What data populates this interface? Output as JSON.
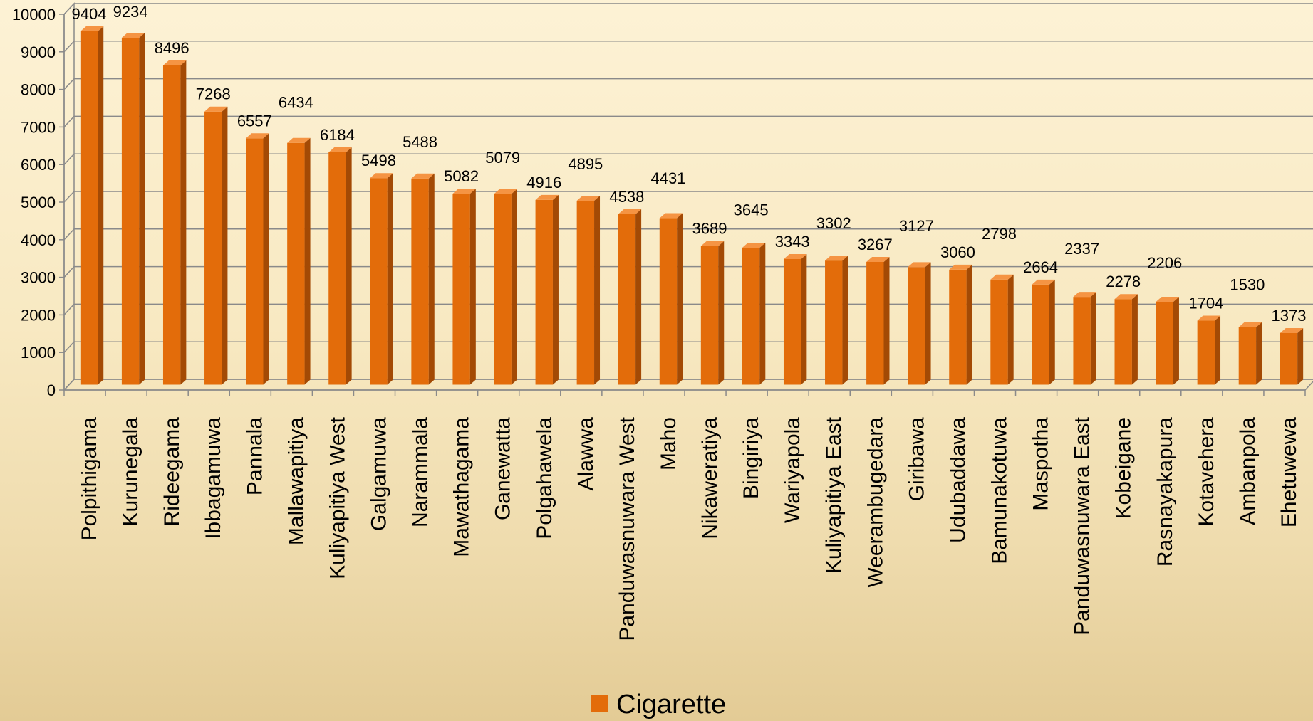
{
  "chart_data": {
    "type": "bar",
    "style": "3d-column",
    "categories": [
      "Polpithigama",
      "Kurunegala",
      "Rideegama",
      "Ibbagamuwa",
      "Pannala",
      "Mallawapitiya",
      "Kuliyapitiya West",
      "Galgamuwa",
      "Narammala",
      "Mawathagama",
      "Ganewatta",
      "Polgahawela",
      "Alawwa",
      "Panduwasnuwara West",
      "Maho",
      "Nikaweratiya",
      "Bingiriya",
      "Wariyapola",
      "Kuliyapitiya East",
      "Weerambugedara",
      "Giribawa",
      "Udubaddawa",
      "Bamunakotuwa",
      "Maspotha",
      "Panduwasnuwara East",
      "Kobeigane",
      "Rasnayakapura",
      "Kotavehera",
      "Ambanpola",
      "Ehetuwewa"
    ],
    "series": [
      {
        "name": "Cigarette",
        "color": "#e36c0a",
        "values": [
          9404,
          9234,
          8496,
          7268,
          6557,
          6434,
          6184,
          5498,
          5488,
          5082,
          5079,
          4916,
          4895,
          4538,
          4431,
          3689,
          3645,
          3343,
          3302,
          3267,
          3127,
          3060,
          2798,
          2664,
          2337,
          2278,
          2206,
          1704,
          1530,
          1373
        ]
      }
    ],
    "ylim": [
      0,
      10000
    ],
    "yticks": [
      "0",
      "1000",
      "2000",
      "3000",
      "4000",
      "5000",
      "6000",
      "7000",
      "8000",
      "9000",
      "10000"
    ],
    "grid": true,
    "legend_position": "bottom",
    "title": "",
    "xlabel": "",
    "ylabel": ""
  }
}
